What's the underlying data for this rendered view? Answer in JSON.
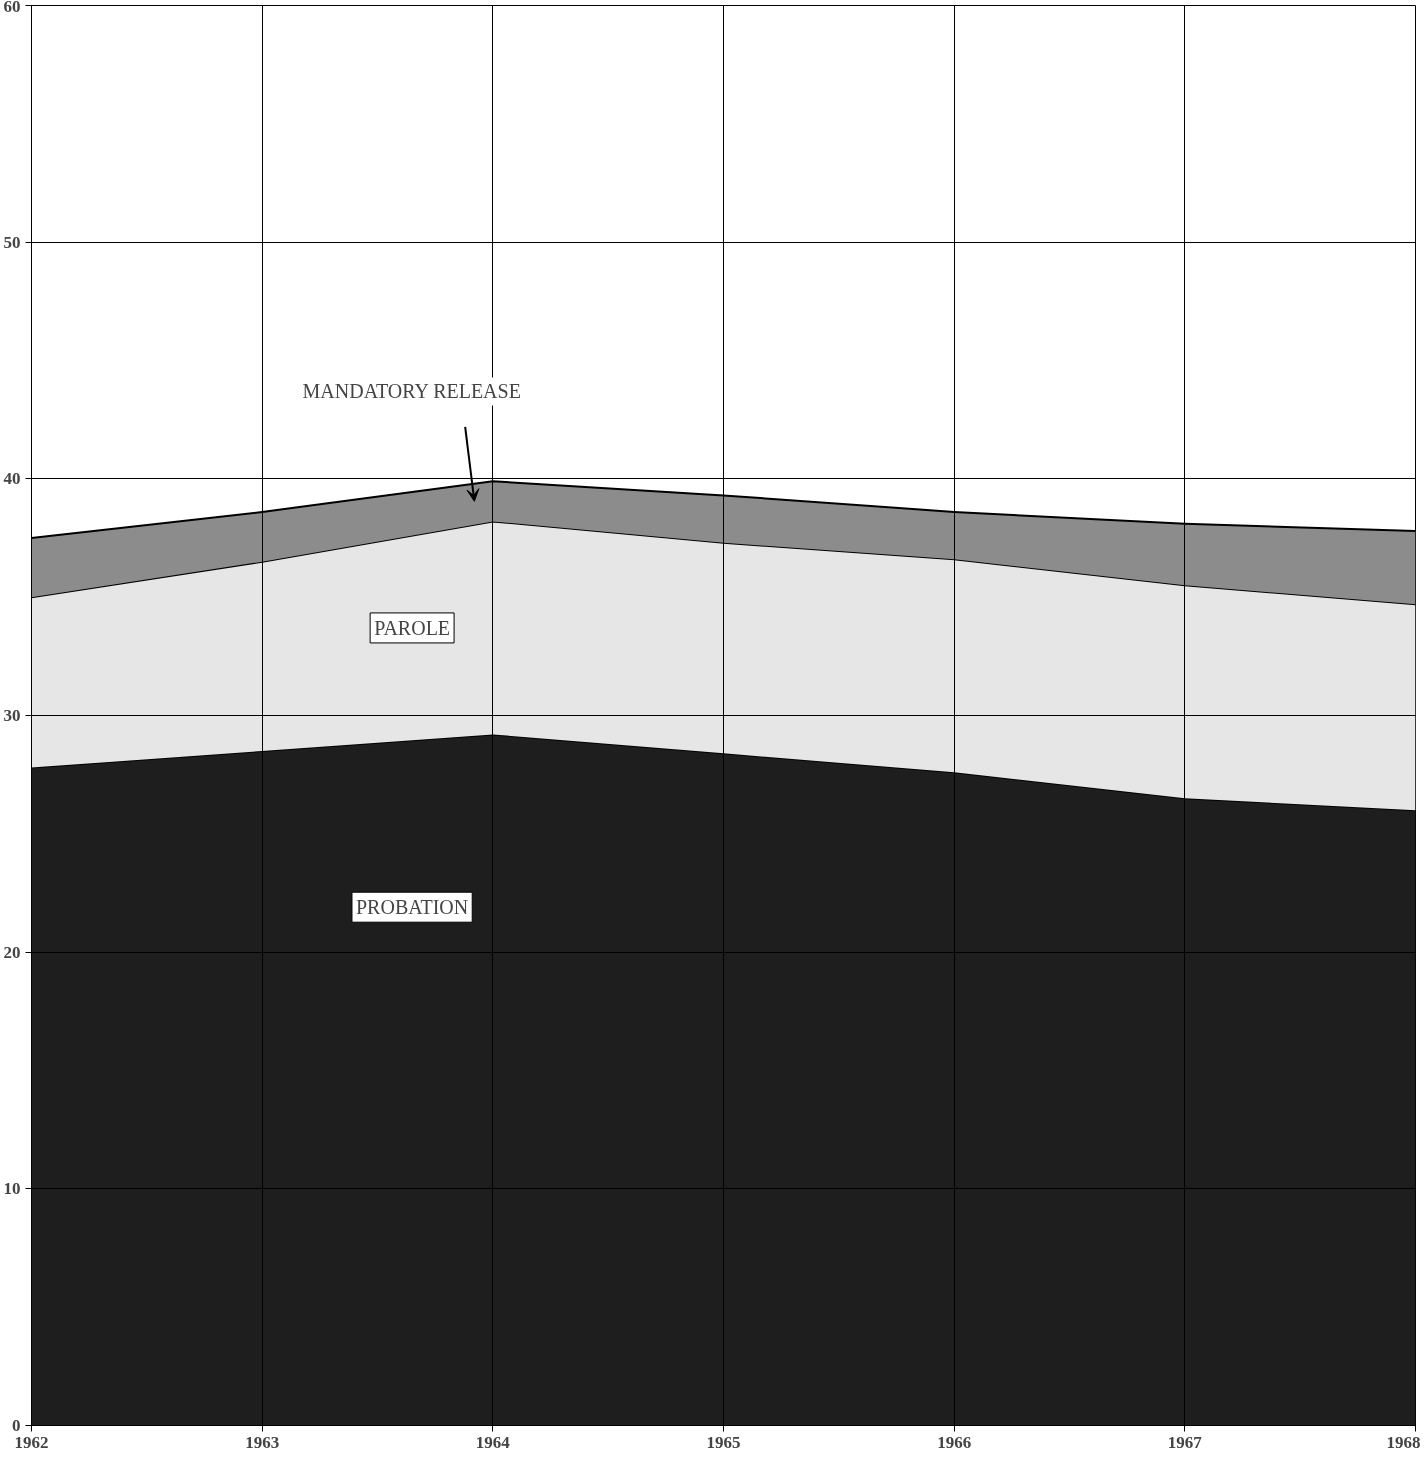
{
  "chart_data": {
    "type": "area",
    "stacked": true,
    "x": [
      1962,
      1963,
      1964,
      1965,
      1966,
      1967,
      1968
    ],
    "series": [
      {
        "name": "PROBATION",
        "color": "#1e1e1e",
        "values": [
          27.8,
          28.5,
          29.2,
          28.4,
          27.6,
          26.5,
          26.0
        ]
      },
      {
        "name": "PAROLE",
        "color": "#e6e6e6",
        "values": [
          7.2,
          8.0,
          9.0,
          8.9,
          9.0,
          9.0,
          8.7
        ]
      },
      {
        "name": "MANDATORY RELEASE",
        "color": "#8c8c8c",
        "values": [
          2.5,
          2.1,
          1.7,
          2.0,
          2.0,
          2.6,
          3.1
        ]
      }
    ],
    "xlim": [
      1962,
      1968
    ],
    "xticks": [
      1962,
      1963,
      1964,
      1965,
      1966,
      1967,
      1968
    ],
    "ylim": [
      0,
      60
    ],
    "yticks": [
      0,
      10,
      20,
      30,
      40,
      50,
      60
    ],
    "grid": true
  }
}
